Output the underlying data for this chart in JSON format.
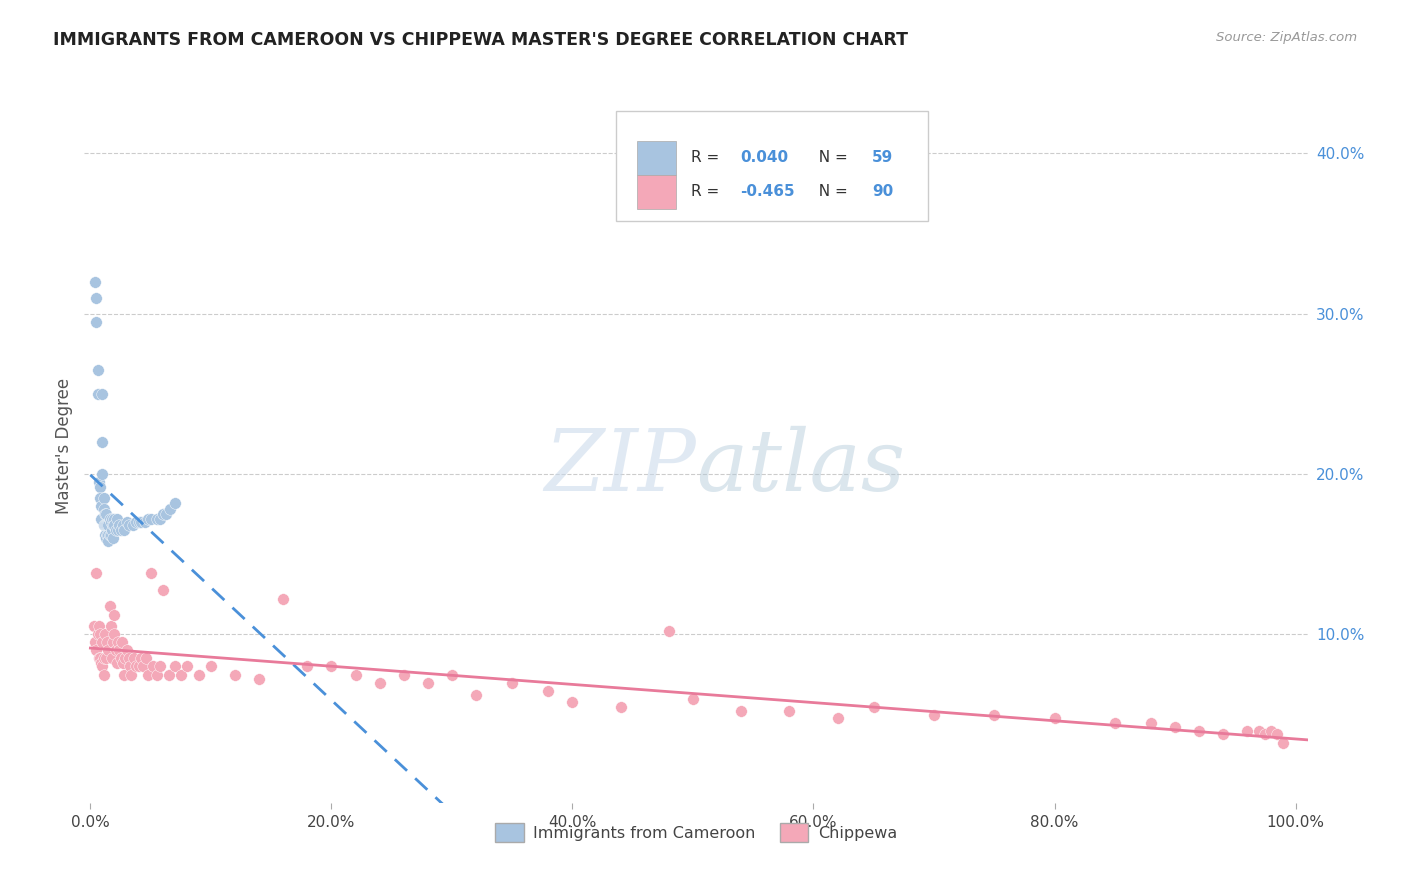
{
  "title": "IMMIGRANTS FROM CAMEROON VS CHIPPEWA MASTER'S DEGREE CORRELATION CHART",
  "source": "Source: ZipAtlas.com",
  "ylabel": "Master's Degree",
  "x_tick_labels": [
    "0.0%",
    "20.0%",
    "40.0%",
    "60.0%",
    "80.0%",
    "100.0%"
  ],
  "x_tick_vals": [
    0.0,
    0.2,
    0.4,
    0.6,
    0.8,
    1.0
  ],
  "y_tick_labels": [
    "10.0%",
    "20.0%",
    "30.0%",
    "40.0%"
  ],
  "y_tick_vals": [
    0.1,
    0.2,
    0.3,
    0.4
  ],
  "legend_label1": "Immigrants from Cameroon",
  "legend_label2": "Chippewa",
  "r1": "0.040",
  "n1": "59",
  "r2": "-0.465",
  "n2": "90",
  "color1": "#a8c4e0",
  "color2": "#f4a8b8",
  "line1_color": "#4a90d9",
  "line2_color": "#e87a9a",
  "line1_dash": true,
  "background_color": "#ffffff",
  "cameroon_x": [
    0.004,
    0.005,
    0.005,
    0.006,
    0.006,
    0.007,
    0.008,
    0.008,
    0.009,
    0.009,
    0.01,
    0.01,
    0.01,
    0.011,
    0.011,
    0.011,
    0.012,
    0.012,
    0.012,
    0.013,
    0.013,
    0.013,
    0.014,
    0.014,
    0.015,
    0.015,
    0.015,
    0.016,
    0.016,
    0.017,
    0.017,
    0.018,
    0.018,
    0.019,
    0.019,
    0.02,
    0.02,
    0.021,
    0.022,
    0.023,
    0.024,
    0.025,
    0.027,
    0.028,
    0.03,
    0.032,
    0.035,
    0.038,
    0.04,
    0.042,
    0.045,
    0.048,
    0.05,
    0.055,
    0.058,
    0.06,
    0.063,
    0.066,
    0.07
  ],
  "cameroon_y": [
    0.32,
    0.31,
    0.295,
    0.265,
    0.25,
    0.195,
    0.192,
    0.185,
    0.18,
    0.172,
    0.25,
    0.22,
    0.2,
    0.185,
    0.178,
    0.168,
    0.175,
    0.168,
    0.162,
    0.175,
    0.168,
    0.16,
    0.168,
    0.162,
    0.168,
    0.162,
    0.158,
    0.172,
    0.162,
    0.17,
    0.162,
    0.172,
    0.165,
    0.168,
    0.16,
    0.172,
    0.168,
    0.165,
    0.172,
    0.165,
    0.168,
    0.165,
    0.168,
    0.165,
    0.17,
    0.168,
    0.168,
    0.17,
    0.17,
    0.17,
    0.17,
    0.172,
    0.172,
    0.172,
    0.172,
    0.175,
    0.175,
    0.178,
    0.182
  ],
  "chippewa_x": [
    0.003,
    0.004,
    0.005,
    0.005,
    0.006,
    0.007,
    0.007,
    0.008,
    0.008,
    0.009,
    0.01,
    0.01,
    0.011,
    0.011,
    0.012,
    0.013,
    0.014,
    0.015,
    0.016,
    0.017,
    0.018,
    0.019,
    0.02,
    0.02,
    0.021,
    0.022,
    0.023,
    0.024,
    0.025,
    0.026,
    0.027,
    0.028,
    0.029,
    0.03,
    0.032,
    0.033,
    0.034,
    0.036,
    0.038,
    0.04,
    0.042,
    0.044,
    0.046,
    0.048,
    0.05,
    0.052,
    0.055,
    0.058,
    0.06,
    0.065,
    0.07,
    0.075,
    0.08,
    0.09,
    0.1,
    0.12,
    0.14,
    0.16,
    0.18,
    0.2,
    0.22,
    0.24,
    0.26,
    0.28,
    0.3,
    0.32,
    0.35,
    0.38,
    0.4,
    0.44,
    0.48,
    0.5,
    0.54,
    0.58,
    0.62,
    0.65,
    0.7,
    0.75,
    0.8,
    0.85,
    0.88,
    0.9,
    0.92,
    0.94,
    0.96,
    0.97,
    0.975,
    0.98,
    0.985,
    0.99
  ],
  "chippewa_y": [
    0.105,
    0.095,
    0.138,
    0.09,
    0.1,
    0.105,
    0.085,
    0.1,
    0.085,
    0.082,
    0.095,
    0.08,
    0.085,
    0.075,
    0.1,
    0.085,
    0.095,
    0.09,
    0.118,
    0.105,
    0.085,
    0.095,
    0.112,
    0.1,
    0.09,
    0.082,
    0.095,
    0.09,
    0.085,
    0.095,
    0.082,
    0.075,
    0.085,
    0.09,
    0.085,
    0.08,
    0.075,
    0.085,
    0.08,
    0.08,
    0.085,
    0.08,
    0.085,
    0.075,
    0.138,
    0.08,
    0.075,
    0.08,
    0.128,
    0.075,
    0.08,
    0.075,
    0.08,
    0.075,
    0.08,
    0.075,
    0.072,
    0.122,
    0.08,
    0.08,
    0.075,
    0.07,
    0.075,
    0.07,
    0.075,
    0.062,
    0.07,
    0.065,
    0.058,
    0.055,
    0.102,
    0.06,
    0.052,
    0.052,
    0.048,
    0.055,
    0.05,
    0.05,
    0.048,
    0.045,
    0.045,
    0.042,
    0.04,
    0.038,
    0.04,
    0.04,
    0.038,
    0.04,
    0.038,
    0.032
  ]
}
